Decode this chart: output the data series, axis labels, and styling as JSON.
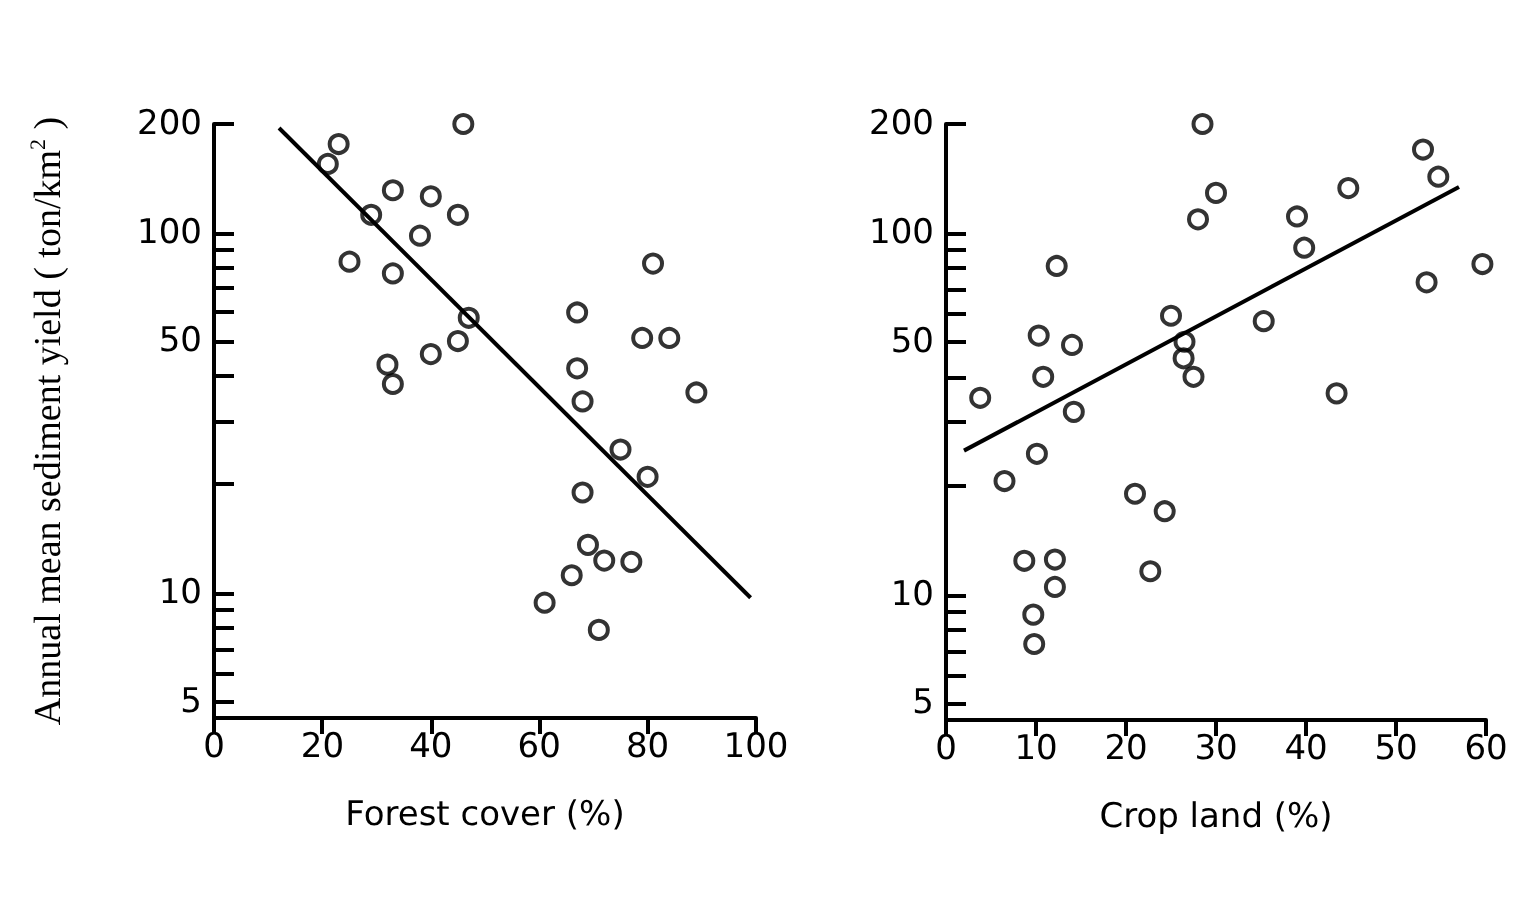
{
  "chart_data": [
    {
      "type": "scatter",
      "xlabel": "Forest cover (%)",
      "ylabel": "Annual mean sediment yield ( ton/km$^{2}$ )",
      "log": "y",
      "grid": false,
      "xlim": [
        0,
        100
      ],
      "xticks": [
        0,
        20,
        40,
        60,
        80,
        100
      ],
      "ylim": [
        4.5,
        200
      ],
      "yticks": [
        5,
        {
          "value": 6,
          "label": null
        },
        {
          "value": 7,
          "label": null
        },
        {
          "value": 8,
          "label": null
        },
        {
          "value": 9,
          "label": null
        },
        10,
        {
          "value": 20,
          "label": null
        },
        {
          "value": 30,
          "label": null
        },
        {
          "value": 40,
          "label": null
        },
        50,
        {
          "value": 60,
          "label": null
        },
        {
          "value": 70,
          "label": null
        },
        {
          "value": 80,
          "label": null
        },
        {
          "value": 90,
          "label": null
        },
        100,
        200
      ],
      "series": [
        {
          "marker": "circle",
          "color": "#000000",
          "x": [
            46,
            23,
            21,
            33,
            40,
            29,
            45,
            38,
            25,
            33,
            81,
            47,
            67,
            79,
            84,
            45,
            40,
            32,
            33,
            67,
            68,
            89,
            75,
            80,
            68,
            69,
            72,
            77,
            66,
            61,
            71
          ],
          "values": [
            200,
            176,
            155,
            131,
            126,
            112,
            112,
            98,
            83,
            77,
            82,
            58,
            60,
            51,
            51,
            50,
            46,
            43,
            38,
            42,
            34,
            36,
            25,
            21,
            19,
            13.6,
            12.3,
            12.2,
            11.2,
            9.4,
            7.9
          ]
        },
        {
          "type": "line",
          "marker": "none",
          "line_style": "solid",
          "color": "#000000",
          "x": [
            12,
            99
          ],
          "values": [
            195,
            9.7
          ]
        }
      ]
    },
    {
      "type": "scatter",
      "xlabel": "Crop land (%)",
      "log": "y",
      "grid": false,
      "xlim": [
        0,
        60
      ],
      "xticks": [
        0,
        10,
        20,
        30,
        40,
        50,
        60
      ],
      "ylim": [
        4.5,
        200
      ],
      "yticks": [
        5,
        {
          "value": 6,
          "label": null
        },
        {
          "value": 7,
          "label": null
        },
        {
          "value": 8,
          "label": null
        },
        {
          "value": 9,
          "label": null
        },
        10,
        {
          "value": 20,
          "label": null
        },
        {
          "value": 30,
          "label": null
        },
        {
          "value": 40,
          "label": null
        },
        50,
        {
          "value": 60,
          "label": null
        },
        {
          "value": 70,
          "label": null
        },
        {
          "value": 80,
          "label": null
        },
        {
          "value": 90,
          "label": null
        },
        100,
        200
      ],
      "series": [
        {
          "marker": "circle",
          "color": "#000000",
          "x": [
            28.5,
            30,
            28,
            39,
            44.7,
            53,
            54.7,
            39.8,
            59.6,
            53.4,
            12.3,
            25,
            26.5,
            35.3,
            10.3,
            14,
            26.4,
            27.5,
            10.8,
            3.8,
            14.2,
            43.4,
            10.1,
            6.5,
            21,
            24.3,
            8.7,
            12.1,
            22.7,
            12.1,
            9.7,
            9.8
          ],
          "values": [
            200,
            129,
            109,
            111,
            133,
            170,
            143,
            91,
            82,
            73,
            81,
            59,
            50,
            57,
            52,
            49,
            45,
            40,
            40,
            35,
            32,
            36,
            24.5,
            20.6,
            19,
            17,
            12.4,
            12.5,
            11.6,
            10.5,
            8.8,
            7.3
          ]
        },
        {
          "type": "line",
          "marker": "none",
          "line_style": "solid",
          "color": "#000000",
          "x": [
            2,
            57
          ],
          "values": [
            25,
            134
          ]
        }
      ]
    }
  ]
}
